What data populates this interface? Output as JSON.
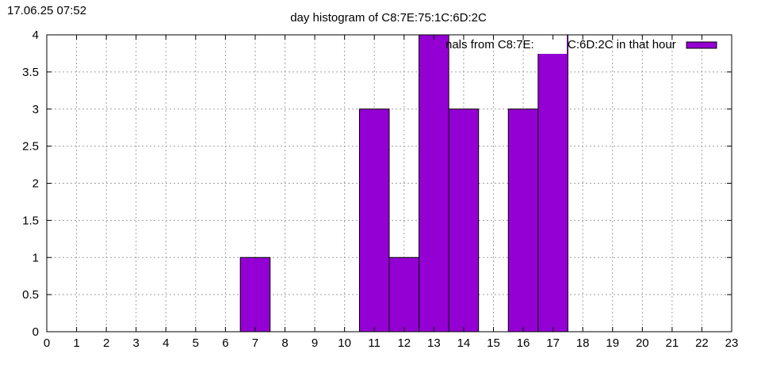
{
  "timestamp": "17.06.25 07:52",
  "chart_data": {
    "type": "bar",
    "title": "day histogram of C8:7E:75:1C:6D:2C",
    "legend": {
      "label": "signals from C8:7E:75:1C:6D:2C in that hour",
      "visible_text": "nals from C8:7E:",
      "visible_text_2": "C:6D:2C in that hour",
      "position": "top-right"
    },
    "xlabel": "",
    "ylabel": "",
    "xlim": [
      0,
      23
    ],
    "ylim": [
      0,
      4
    ],
    "grid": true,
    "x_ticks": [
      "0",
      "1",
      "2",
      "3",
      "4",
      "5",
      "6",
      "7",
      "8",
      "9",
      "10",
      "11",
      "12",
      "13",
      "14",
      "15",
      "16",
      "17",
      "18",
      "19",
      "20",
      "21",
      "22",
      "23"
    ],
    "y_ticks": [
      "0",
      "0.5",
      "1",
      "1.5",
      "2",
      "2.5",
      "3",
      "3.5",
      "4"
    ],
    "bar_color": "#9400d3",
    "bar_width": 1,
    "x": [
      7,
      11,
      12,
      13,
      14,
      16,
      17
    ],
    "values": [
      1,
      3,
      1,
      4,
      3,
      3,
      4
    ]
  }
}
